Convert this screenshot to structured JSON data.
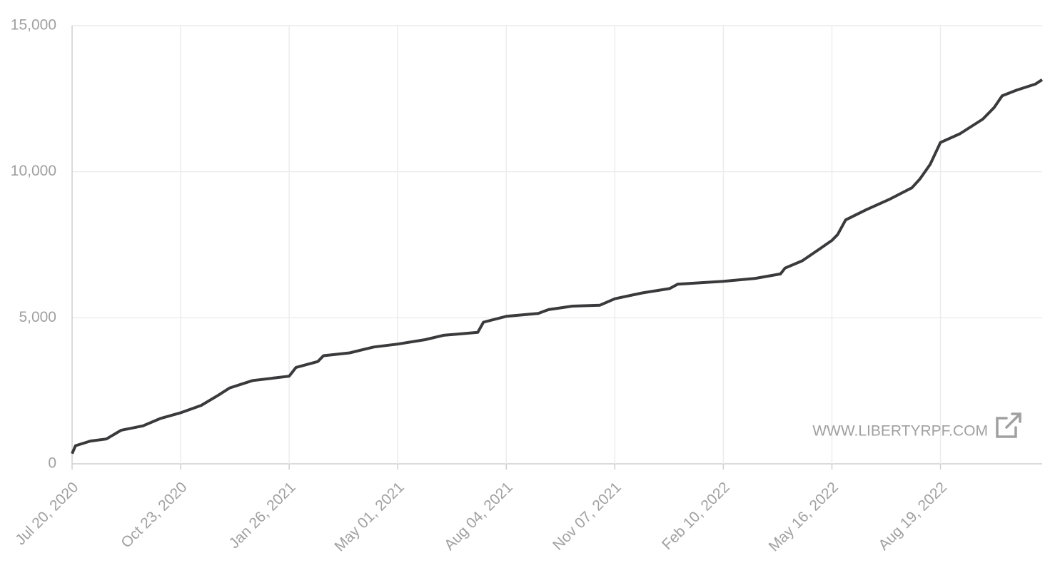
{
  "chart_data": {
    "type": "line",
    "color": "#3a3a3c",
    "grid": true,
    "watermark": "WWW.LIBERTYRPF.COM",
    "x": [
      "2020-07-20",
      "2020-07-23",
      "2020-08-05",
      "2020-08-19",
      "2020-09-01",
      "2020-09-20",
      "2020-10-05",
      "2020-10-23",
      "2020-11-10",
      "2020-11-25",
      "2020-12-05",
      "2020-12-25",
      "2021-01-26",
      "2021-02-01",
      "2021-02-20",
      "2021-02-25",
      "2021-03-20",
      "2021-04-10",
      "2021-05-01",
      "2021-05-25",
      "2021-06-10",
      "2021-07-10",
      "2021-07-15",
      "2021-08-04",
      "2021-09-01",
      "2021-09-10",
      "2021-10-01",
      "2021-10-25",
      "2021-11-07",
      "2021-12-01",
      "2021-12-25",
      "2022-01-01",
      "2022-02-10",
      "2022-03-10",
      "2022-04-01",
      "2022-04-05",
      "2022-04-20",
      "2022-05-05",
      "2022-05-16",
      "2022-05-21",
      "2022-05-28",
      "2022-06-15",
      "2022-07-05",
      "2022-07-25",
      "2022-08-01",
      "2022-08-10",
      "2022-08-19",
      "2022-09-05",
      "2022-09-25",
      "2022-10-05",
      "2022-10-12",
      "2022-10-25",
      "2022-11-10",
      "2022-11-16"
    ],
    "values": [
      350,
      620,
      780,
      850,
      1150,
      1300,
      1550,
      1750,
      2000,
      2350,
      2600,
      2850,
      3000,
      3300,
      3500,
      3700,
      3800,
      4000,
      4100,
      4250,
      4400,
      4500,
      4850,
      5050,
      5150,
      5280,
      5400,
      5430,
      5650,
      5850,
      6000,
      6150,
      6250,
      6350,
      6500,
      6700,
      6950,
      7350,
      7650,
      7850,
      8350,
      8700,
      9050,
      9450,
      9750,
      10250,
      11000,
      11300,
      11800,
      12200,
      12600,
      12800,
      13000,
      13150
    ],
    "xlim": [
      "2020-07-20",
      "2022-11-16"
    ],
    "xticks": [
      {
        "value": "2020-07-20",
        "label": "Jul 20, 2020"
      },
      {
        "value": "2020-10-23",
        "label": "Oct 23, 2020"
      },
      {
        "value": "2021-01-26",
        "label": "Jan 26, 2021"
      },
      {
        "value": "2021-05-01",
        "label": "May 01, 2021"
      },
      {
        "value": "2021-08-04",
        "label": "Aug 04, 2021"
      },
      {
        "value": "2021-11-07",
        "label": "Nov 07, 2021"
      },
      {
        "value": "2022-02-10",
        "label": "Feb 10, 2022"
      },
      {
        "value": "2022-05-16",
        "label": "May 16, 2022"
      },
      {
        "value": "2022-08-19",
        "label": "Aug 19, 2022"
      }
    ],
    "ylim": [
      0,
      15000
    ],
    "yticks": [
      0,
      {
        "value": 5000,
        "label": "5,000"
      },
      {
        "value": 10000,
        "label": "10,000"
      },
      {
        "value": 15000,
        "label": "15,000"
      }
    ]
  }
}
